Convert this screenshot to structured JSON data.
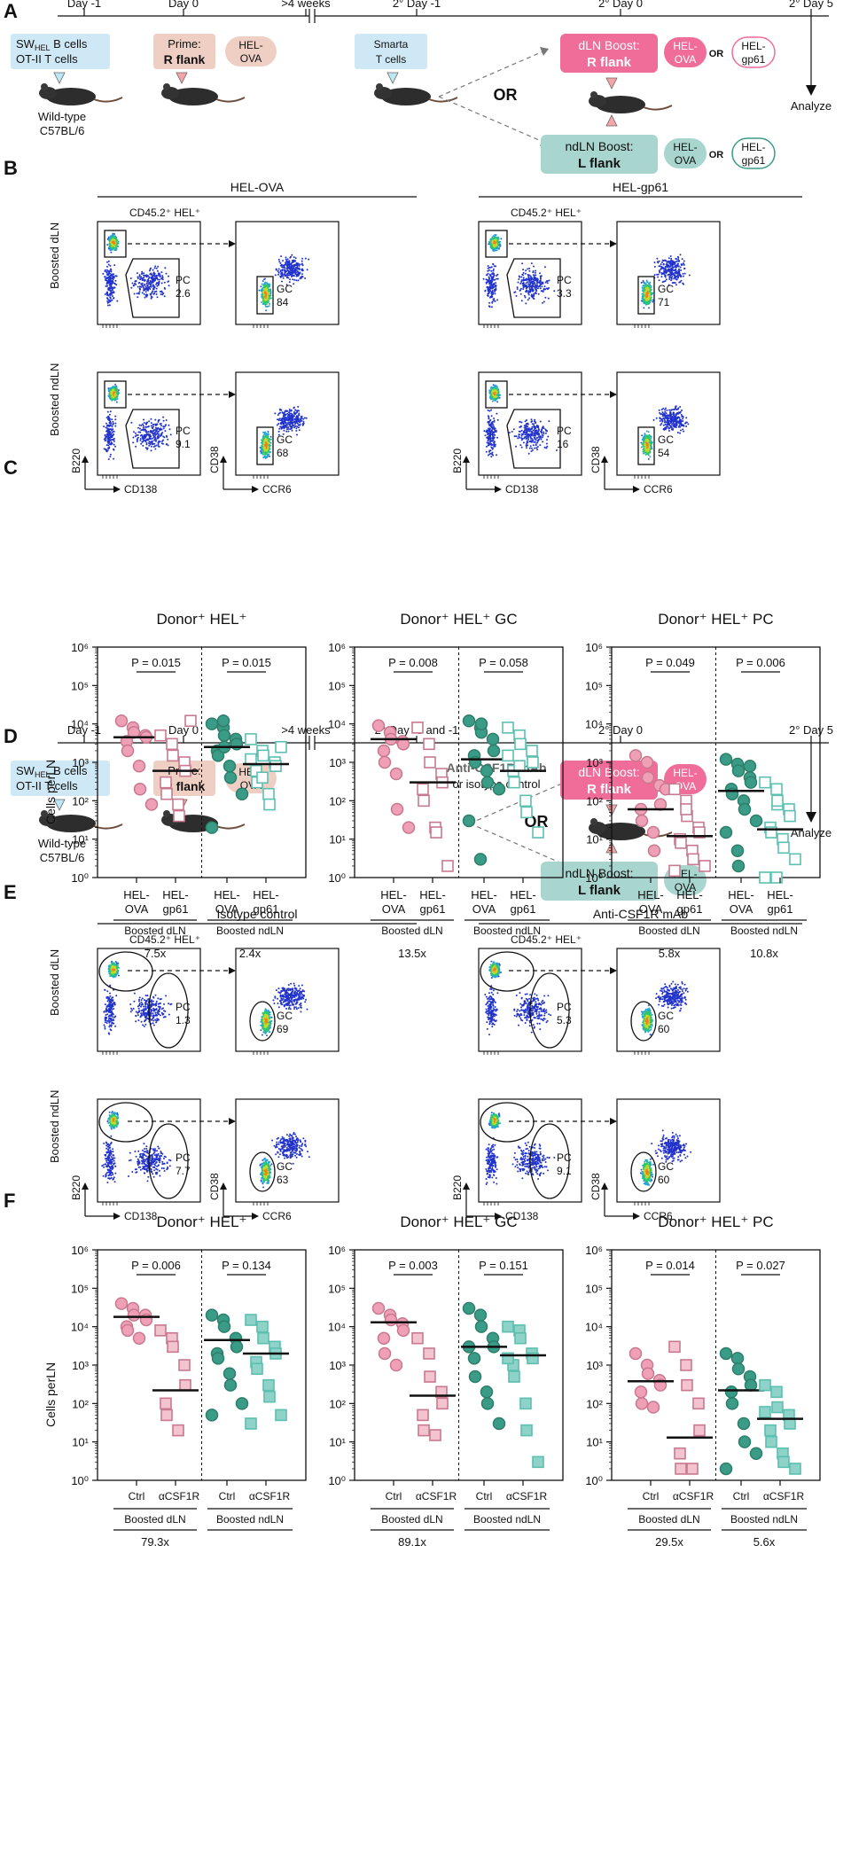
{
  "panel_letters": [
    "A",
    "B",
    "C",
    "D",
    "E",
    "F"
  ],
  "colors": {
    "pink": "#c8798f",
    "pink_fill": "#f0a0b6",
    "teal": "#3a9b86",
    "teal_light": "#8fd3c8",
    "rect_pink": "#f06d9a",
    "rect_teal": "#a8d6cf",
    "rect_tan": "#efcfc4",
    "rect_blue": "#cfe8f5"
  },
  "A": {
    "days": [
      "Day -1",
      "Day 0",
      ">4 weeks",
      "2° Day -1",
      "2° Day 0",
      "2° Day 5"
    ],
    "cells_line1": "SW",
    "cells_sub": "HEL",
    "cells_line1_rest": " B cells",
    "cells_line2": "OT-II T cells",
    "prime_l1": "Prime:",
    "prime_l2": "R flank",
    "hel_ova_l1": "HEL-",
    "hel_ova_l2": "OVA",
    "smarta_l1": "Smarta",
    "smarta_l2": "T cells",
    "dln_l1": "dLN Boost:",
    "dln_l2": "R flank",
    "ndln_l1": "ndLN Boost:",
    "ndln_l2": "L flank",
    "gp61_l1": "HEL-",
    "gp61_l2": "gp61",
    "or": "OR",
    "analyze": "Analyze",
    "wt_l1": "Wild-type",
    "wt_l2": "C57BL/6"
  },
  "B": {
    "group_titles": [
      "HEL-OVA",
      "HEL-gp61"
    ],
    "gate_label": "CD45.2⁺ HEL⁺",
    "row_labels": [
      "Boosted dLN",
      "Boosted ndLN"
    ],
    "x_label_left": "CD138",
    "y_label_left": "B220",
    "x_label_right": "CCR6",
    "y_label_right": "CD38",
    "pc_label": "PC",
    "gc_label": "GC",
    "pc_values": [
      [
        "2.6",
        "9.1"
      ],
      [
        "3.3",
        "16"
      ]
    ],
    "gc_values": [
      [
        "84",
        "68"
      ],
      [
        "71",
        "54"
      ]
    ]
  },
  "C": {
    "titles": [
      "Donor⁺ HEL⁺",
      "Donor⁺ HEL⁺ GC",
      "Donor⁺ HEL⁺ PC"
    ],
    "ylabel": "Cells perLN",
    "yticks": [
      "10⁰",
      "10¹",
      "10²",
      "10³",
      "10⁴",
      "10⁵",
      "10⁶"
    ],
    "xlab": [
      [
        "HEL-",
        "OVA"
      ],
      [
        "HEL-",
        "gp61"
      ],
      [
        "HEL-",
        "OVA"
      ],
      [
        "HEL-",
        "gp61"
      ]
    ],
    "groups": [
      "Boosted dLN",
      "Boosted ndLN"
    ],
    "p_values": [
      [
        "P = 0.015",
        "P = 0.015"
      ],
      [
        "P = 0.008",
        "P = 0.058"
      ],
      [
        "P = 0.049",
        "P = 0.006"
      ]
    ],
    "fold": [
      [
        "7.5x",
        "2.4x"
      ],
      [
        "13.5x",
        ""
      ],
      [
        "5.8x",
        "10.8x"
      ]
    ]
  },
  "D": {
    "days": [
      "Day -1",
      "Day 0",
      ">4 weeks",
      "2° Day -5 and -1",
      "2° Day 0",
      "2° Day 5"
    ],
    "treatment_l1": "Anti-CSF1R mAb",
    "treatment_l2": "or isotype control"
  },
  "E": {
    "group_titles": [
      "Isotype control",
      "Anti-CSF1R mAb"
    ],
    "gate_label": "CD45.2⁺ HEL⁺",
    "pc_values": [
      [
        "1.3",
        "7.7"
      ],
      [
        "5.3",
        "9.1"
      ]
    ],
    "gc_values": [
      [
        "69",
        "63"
      ],
      [
        "60",
        "60"
      ]
    ]
  },
  "F": {
    "titles": [
      "Donor⁺ HEL⁺",
      "Donor⁺ HEL⁺ GC",
      "Donor⁺ HEL⁺ PC"
    ],
    "xlab": [
      "Ctrl",
      "αCSF1R",
      "Ctrl",
      "αCSF1R"
    ],
    "p_values": [
      [
        "P = 0.006",
        "P = 0.134"
      ],
      [
        "P = 0.003",
        "P = 0.151"
      ],
      [
        "P = 0.014",
        "P = 0.027"
      ]
    ],
    "fold": [
      "79.3x",
      "89.1x",
      "29.5x",
      "5.6x"
    ]
  },
  "chart_data": [
    {
      "type": "scatter",
      "panel": "C",
      "title": "Donor⁺ HEL⁺",
      "ylabel": "Cells perLN",
      "yscale": "log",
      "ylim": [
        1,
        1000000
      ],
      "series": [
        {
          "values": [
            12000,
            8000,
            6000,
            5000,
            4500,
            3500,
            2000,
            800,
            200,
            80
          ]
        },
        {
          "values": [
            5000,
            3000,
            1500,
            1000,
            600,
            300,
            150,
            80,
            40,
            12000
          ]
        },
        {
          "values": [
            10000,
            8000,
            5000,
            4000,
            3000,
            2000,
            1500,
            800,
            400,
            150,
            20,
            12000,
            2500
          ]
        },
        {
          "values": [
            4000,
            2000,
            1500,
            1000,
            800,
            600,
            300,
            150,
            80,
            2500,
            1200,
            400
          ]
        }
      ],
      "medians": [
        4500,
        600,
        2500,
        900
      ]
    },
    {
      "type": "scatter",
      "panel": "C",
      "title": "Donor⁺ HEL⁺ GC",
      "ylabel": "Cells perLN",
      "yscale": "log",
      "ylim": [
        1,
        1000000
      ],
      "series": [
        {
          "values": [
            9000,
            6000,
            4000,
            3500,
            3000,
            2000,
            1000,
            500,
            60,
            20
          ]
        },
        {
          "values": [
            8000,
            3000,
            1000,
            500,
            300,
            200,
            100,
            20,
            15,
            2
          ]
        },
        {
          "values": [
            12000,
            8000,
            6000,
            4000,
            2000,
            1500,
            1000,
            600,
            300,
            200,
            30,
            3,
            10000
          ]
        },
        {
          "values": [
            8000,
            5000,
            3000,
            2000,
            1000,
            600,
            300,
            100,
            50,
            15,
            1500,
            800
          ]
        }
      ],
      "medians": [
        4000,
        300,
        1200,
        600
      ]
    },
    {
      "type": "scatter",
      "panel": "C",
      "title": "Donor⁺ HEL⁺ PC",
      "ylabel": "Cells perLN",
      "yscale": "log",
      "ylim": [
        1,
        1000000
      ],
      "series": [
        {
          "values": [
            1500,
            1000,
            400,
            250,
            80,
            60,
            30,
            15,
            5,
            200
          ]
        },
        {
          "values": [
            200,
            100,
            40,
            20,
            15,
            10,
            8,
            5,
            3,
            2,
            1.5,
            60
          ]
        },
        {
          "values": [
            1200,
            900,
            600,
            400,
            300,
            200,
            150,
            100,
            60,
            30,
            15,
            5,
            2,
            800
          ]
        },
        {
          "values": [
            300,
            200,
            80,
            60,
            40,
            20,
            15,
            10,
            6,
            3,
            1,
            1,
            100
          ]
        }
      ],
      "medians": [
        60,
        12,
        180,
        18
      ]
    },
    {
      "type": "scatter",
      "panel": "F",
      "title": "Donor⁺ HEL⁺",
      "ylabel": "Cells perLN",
      "yscale": "log",
      "ylim": [
        1,
        1000000
      ],
      "series": [
        {
          "values": [
            40000,
            30000,
            20000,
            20000,
            15000,
            10000,
            8000,
            5000
          ]
        },
        {
          "values": [
            8000,
            5000,
            3000,
            1000,
            300,
            100,
            50,
            20
          ]
        },
        {
          "values": [
            20000,
            15000,
            10000,
            5000,
            3000,
            2000,
            1500,
            600,
            300,
            100,
            50
          ]
        },
        {
          "values": [
            15000,
            10000,
            5000,
            3000,
            2000,
            1200,
            800,
            300,
            150,
            50,
            30
          ]
        }
      ],
      "medians": [
        18000,
        220,
        4500,
        2000
      ]
    },
    {
      "type": "scatter",
      "panel": "F",
      "title": "Donor⁺ HEL⁺ GC",
      "ylabel": "Cells perLN",
      "yscale": "log",
      "ylim": [
        1,
        1000000
      ],
      "series": [
        {
          "values": [
            30000,
            20000,
            15000,
            12000,
            8000,
            5000,
            2000,
            1000
          ]
        },
        {
          "values": [
            5000,
            2000,
            500,
            200,
            100,
            50,
            20,
            15
          ]
        },
        {
          "values": [
            30000,
            20000,
            10000,
            5000,
            3000,
            1500,
            500,
            200,
            100,
            30,
            3000
          ]
        },
        {
          "values": [
            10000,
            8000,
            5000,
            2000,
            1500,
            1000,
            500,
            100,
            20,
            3,
            1500
          ]
        }
      ],
      "medians": [
        13000,
        160,
        3000,
        1800
      ]
    },
    {
      "type": "scatter",
      "panel": "F",
      "title": "Donor⁺ HEL⁺ PC",
      "ylabel": "Cells perLN",
      "yscale": "log",
      "ylim": [
        1,
        1000000
      ],
      "series": [
        {
          "values": [
            2000,
            1000,
            600,
            400,
            300,
            200,
            100,
            80
          ]
        },
        {
          "values": [
            3000,
            1000,
            300,
            100,
            20,
            5,
            2,
            2
          ]
        },
        {
          "values": [
            2000,
            1500,
            800,
            500,
            300,
            200,
            100,
            30,
            10,
            5,
            2
          ]
        },
        {
          "values": [
            300,
            200,
            80,
            50,
            30,
            20,
            10,
            5,
            3,
            2,
            60
          ]
        }
      ],
      "medians": [
        380,
        13,
        220,
        40
      ]
    }
  ]
}
